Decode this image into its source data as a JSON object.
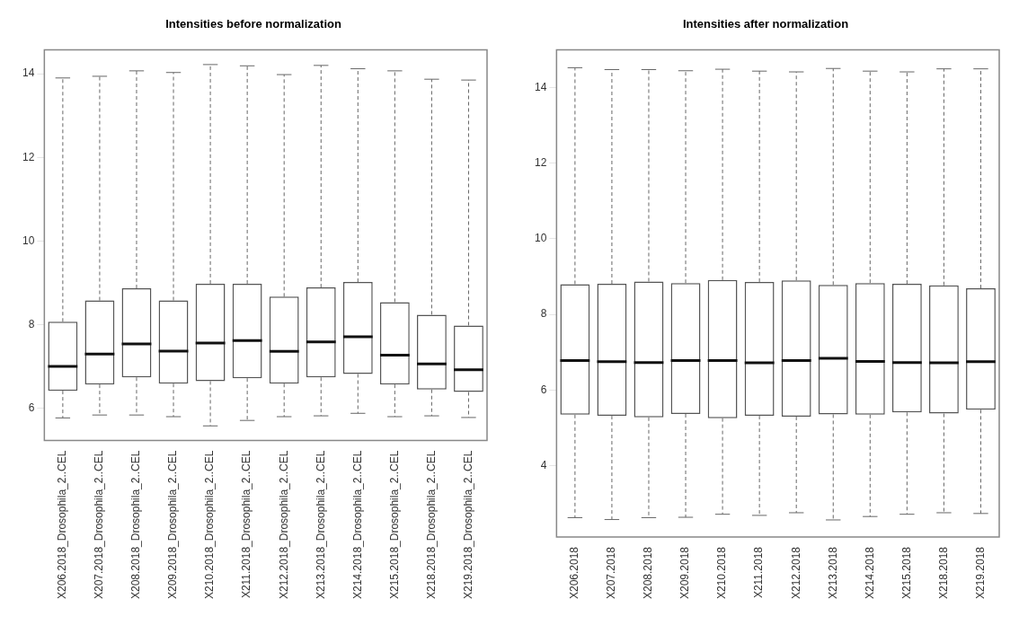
{
  "chart_data": [
    {
      "type": "box",
      "title": "Intensities before normalization",
      "categories": [
        "X206.2018_Drosophila_2..CEL",
        "X207.2018_Drosophila_2..CEL",
        "X208.2018_Drosophila_2..CEL",
        "X209.2018_Drosophila_2..CEL",
        "X210.2018_Drosophila_2..CEL",
        "X211.2018_Drosophila_2..CEL",
        "X212.2018_Drosophila_2..CEL",
        "X213.2018_Drosophila_2..CEL",
        "X214.2018_Drosophila_2..CEL",
        "X215.2018_Drosophila_2..CEL",
        "X218.2018_Drosophila_2..CEL",
        "X219.2018_Drosophila_2..CEL"
      ],
      "ylim": [
        5.23,
        14.57
      ],
      "yticks": [
        6,
        8,
        10,
        12,
        14
      ],
      "boxes": [
        {
          "low": 5.77,
          "q1": 6.42,
          "median": 7.0,
          "q3": 8.07,
          "high": 13.9
        },
        {
          "low": 5.84,
          "q1": 6.57,
          "median": 7.3,
          "q3": 8.58,
          "high": 13.94
        },
        {
          "low": 5.84,
          "q1": 6.74,
          "median": 7.54,
          "q3": 8.87,
          "high": 14.07
        },
        {
          "low": 5.8,
          "q1": 6.59,
          "median": 7.37,
          "q3": 8.58,
          "high": 14.03
        },
        {
          "low": 5.58,
          "q1": 6.65,
          "median": 7.56,
          "q3": 8.98,
          "high": 14.22
        },
        {
          "low": 5.71,
          "q1": 6.72,
          "median": 7.62,
          "q3": 8.98,
          "high": 14.19
        },
        {
          "low": 5.8,
          "q1": 6.59,
          "median": 7.36,
          "q3": 8.67,
          "high": 13.98
        },
        {
          "low": 5.82,
          "q1": 6.74,
          "median": 7.59,
          "q3": 8.89,
          "high": 14.2
        },
        {
          "low": 5.88,
          "q1": 6.82,
          "median": 7.71,
          "q3": 9.02,
          "high": 14.12
        },
        {
          "low": 5.8,
          "q1": 6.57,
          "median": 7.27,
          "q3": 8.54,
          "high": 14.07
        },
        {
          "low": 5.82,
          "q1": 6.45,
          "median": 7.06,
          "q3": 8.24,
          "high": 13.87
        },
        {
          "low": 5.78,
          "q1": 6.39,
          "median": 6.92,
          "q3": 7.98,
          "high": 13.85
        }
      ]
    },
    {
      "type": "box",
      "title": "Intensities after normalization",
      "categories": [
        "X206.2018",
        "X207.2018",
        "X208.2018",
        "X209.2018",
        "X210.2018",
        "X211.2018",
        "X212.2018",
        "X213.2018",
        "X214.2018",
        "X215.2018",
        "X218.2018",
        "X219.2018"
      ],
      "ylim": [
        2.12,
        14.99
      ],
      "yticks": [
        4,
        6,
        8,
        10,
        12,
        14
      ],
      "boxes": [
        {
          "low": 2.63,
          "q1": 5.35,
          "median": 6.78,
          "q3": 8.8,
          "high": 14.52
        },
        {
          "low": 2.58,
          "q1": 5.32,
          "median": 6.75,
          "q3": 8.81,
          "high": 14.47
        },
        {
          "low": 2.63,
          "q1": 5.28,
          "median": 6.73,
          "q3": 8.87,
          "high": 14.47
        },
        {
          "low": 2.64,
          "q1": 5.37,
          "median": 6.78,
          "q3": 8.83,
          "high": 14.44
        },
        {
          "low": 2.72,
          "q1": 5.26,
          "median": 6.78,
          "q3": 8.91,
          "high": 14.48
        },
        {
          "low": 2.69,
          "q1": 5.32,
          "median": 6.72,
          "q3": 8.86,
          "high": 14.43
        },
        {
          "low": 2.76,
          "q1": 5.3,
          "median": 6.78,
          "q3": 8.9,
          "high": 14.41
        },
        {
          "low": 2.57,
          "q1": 5.36,
          "median": 6.84,
          "q3": 8.78,
          "high": 14.5
        },
        {
          "low": 2.66,
          "q1": 5.35,
          "median": 6.76,
          "q3": 8.83,
          "high": 14.43
        },
        {
          "low": 2.72,
          "q1": 5.41,
          "median": 6.73,
          "q3": 8.81,
          "high": 14.41
        },
        {
          "low": 2.76,
          "q1": 5.38,
          "median": 6.72,
          "q3": 8.77,
          "high": 14.49
        },
        {
          "low": 2.74,
          "q1": 5.48,
          "median": 6.75,
          "q3": 8.69,
          "high": 14.49
        }
      ]
    }
  ]
}
